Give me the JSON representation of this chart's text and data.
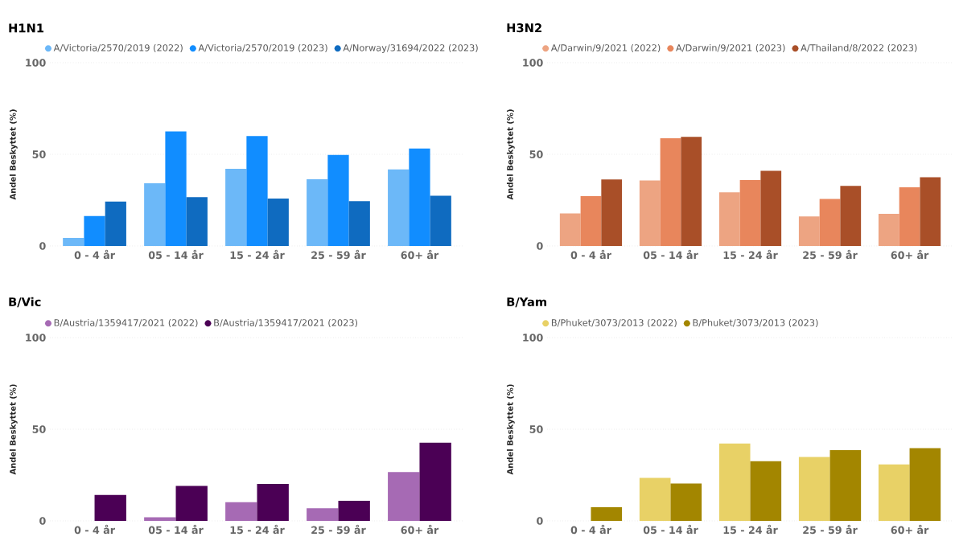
{
  "chart_data": [
    {
      "type": "bar",
      "title": "H1N1",
      "ylabel": "Andel Beskyttet (%)",
      "categories": [
        "0 - 4 år",
        "05 - 14 år",
        "15 - 24 år",
        "25 - 59 år",
        "60+ år"
      ],
      "ylim": [
        0,
        100
      ],
      "yticks": [
        0,
        50,
        100
      ],
      "grid": "y",
      "legend": "top left",
      "marker": "circle",
      "series": [
        {
          "name": "A/Victoria/2570/2019 (2022)",
          "color": "#6cb8f8",
          "values": [
            4.4,
            34.2,
            42.1,
            36.4,
            41.8
          ]
        },
        {
          "name": "A/Victoria/2570/2019 (2023)",
          "color": "#118dff",
          "values": [
            16.3,
            62.5,
            60.0,
            49.7,
            53.2
          ]
        },
        {
          "name": "A/Norway/31694/2022 (2023)",
          "color": "#0f6bc0",
          "values": [
            24.2,
            26.6,
            25.9,
            24.5,
            27.4
          ]
        }
      ]
    },
    {
      "type": "bar",
      "title": "H3N2",
      "ylabel": "Andel Beskyttet (%)",
      "categories": [
        "0 - 4 år",
        "05 - 14 år",
        "15 - 24 år",
        "25 - 59 år",
        "60+ år"
      ],
      "ylim": [
        0,
        100
      ],
      "yticks": [
        0,
        50,
        100
      ],
      "grid": "y",
      "legend": "top left",
      "marker": "circle",
      "series": [
        {
          "name": "A/Darwin/9/2021 (2022)",
          "color": "#eda482",
          "values": [
            17.8,
            35.7,
            29.3,
            16.1,
            17.5
          ]
        },
        {
          "name": "A/Darwin/9/2021 (2023)",
          "color": "#e8865c",
          "values": [
            27.2,
            58.8,
            36.0,
            25.7,
            32.0
          ]
        },
        {
          "name": "A/Thailand/8/2022 (2023)",
          "color": "#a94f28",
          "values": [
            36.3,
            59.5,
            41.0,
            32.8,
            37.5
          ]
        }
      ]
    },
    {
      "type": "bar",
      "title": "B/Vic",
      "ylabel": "Andel Beskyttet (%)",
      "categories": [
        "0 - 4 år",
        "05 - 14 år",
        "15 - 24 år",
        "25 - 59 år",
        "60+ år"
      ],
      "ylim": [
        0,
        100
      ],
      "yticks": [
        0,
        50,
        100
      ],
      "grid": "y",
      "legend": "top left",
      "marker": "circle",
      "series": [
        {
          "name": "B/Austria/1359417/2021 (2022)",
          "color": "#a66ab4",
          "values": [
            null,
            2.0,
            10.2,
            6.9,
            26.6
          ]
        },
        {
          "name": "B/Austria/1359417/2021 (2023)",
          "color": "#4b0055",
          "values": [
            14.1,
            19.1,
            20.2,
            11.0,
            42.6
          ]
        }
      ]
    },
    {
      "type": "bar",
      "title": "B/Yam",
      "ylabel": "Andel Beskyttet (%)",
      "categories": [
        "0 - 4 år",
        "05 - 14 år",
        "15 - 24 år",
        "25 - 59 år",
        "60+ år"
      ],
      "ylim": [
        0,
        100
      ],
      "yticks": [
        0,
        50,
        100
      ],
      "grid": "y",
      "legend": "top left",
      "marker": "circle",
      "series": [
        {
          "name": "B/Phuket/3073/2013 (2022)",
          "color": "#e8d166",
          "values": [
            null,
            23.5,
            42.2,
            34.9,
            30.8
          ]
        },
        {
          "name": "B/Phuket/3073/2013 (2023)",
          "color": "#a38600",
          "values": [
            7.5,
            20.4,
            32.6,
            38.6,
            39.7
          ]
        }
      ]
    }
  ]
}
